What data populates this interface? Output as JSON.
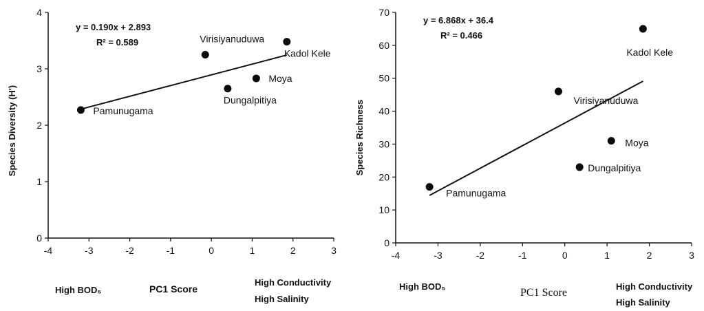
{
  "chart_data": [
    {
      "type": "scatter",
      "xlabel": "PC1 Score",
      "ylabel": "Species Diversity (H')",
      "xlim": [
        -4,
        3
      ],
      "ylim": [
        0,
        4
      ],
      "xticks": [
        "-4",
        "-3",
        "-2",
        "-1",
        "0",
        "1",
        "2",
        "3"
      ],
      "yticks": [
        "0",
        "1",
        "2",
        "3",
        "4"
      ],
      "points": [
        {
          "label": "Pamunugama",
          "x": -3.2,
          "y": 2.27
        },
        {
          "label": "Virisiyanuduwa",
          "x": -0.15,
          "y": 3.25
        },
        {
          "label": "Dungalpitiya",
          "x": 0.4,
          "y": 2.65
        },
        {
          "label": "Moya",
          "x": 1.1,
          "y": 2.83
        },
        {
          "label": "Kadol Kele",
          "x": 1.85,
          "y": 3.48
        }
      ],
      "trendline": {
        "slope": 0.19,
        "intercept": 2.893,
        "x_range": [
          -3.2,
          1.85
        ]
      },
      "equation": "y = 0.190x + 2.893",
      "r2": "R² = 0.589",
      "x_low_note": "High BOD₅",
      "x_high_note_1": "High Conductivity",
      "x_high_note_2": "High Salinity",
      "grid": false
    },
    {
      "type": "scatter",
      "xlabel": "PC1 Score",
      "ylabel": "Species Richness",
      "xlim": [
        -4,
        3
      ],
      "ylim": [
        0,
        70
      ],
      "xticks": [
        "-4",
        "-3",
        "-2",
        "-1",
        "0",
        "1",
        "2",
        "3"
      ],
      "yticks": [
        "0",
        "10",
        "20",
        "30",
        "40",
        "50",
        "60",
        "70"
      ],
      "points": [
        {
          "label": "Pamunugama",
          "x": -3.2,
          "y": 17
        },
        {
          "label": "Virisiyanuduwa",
          "x": -0.15,
          "y": 46
        },
        {
          "label": "Dungalpitiya",
          "x": 0.35,
          "y": 23
        },
        {
          "label": "Moya",
          "x": 1.1,
          "y": 31
        },
        {
          "label": "Kadol Kele",
          "x": 1.85,
          "y": 65
        }
      ],
      "trendline": {
        "slope": 6.868,
        "intercept": 36.4,
        "x_range": [
          -3.2,
          1.85
        ]
      },
      "equation": "y = 6.868x + 36.4",
      "r2": "R² = 0.466",
      "x_low_note": "High BOD₅",
      "x_high_note_1": "High Conductivity",
      "x_high_note_2": "High Salinity",
      "grid": false
    }
  ]
}
